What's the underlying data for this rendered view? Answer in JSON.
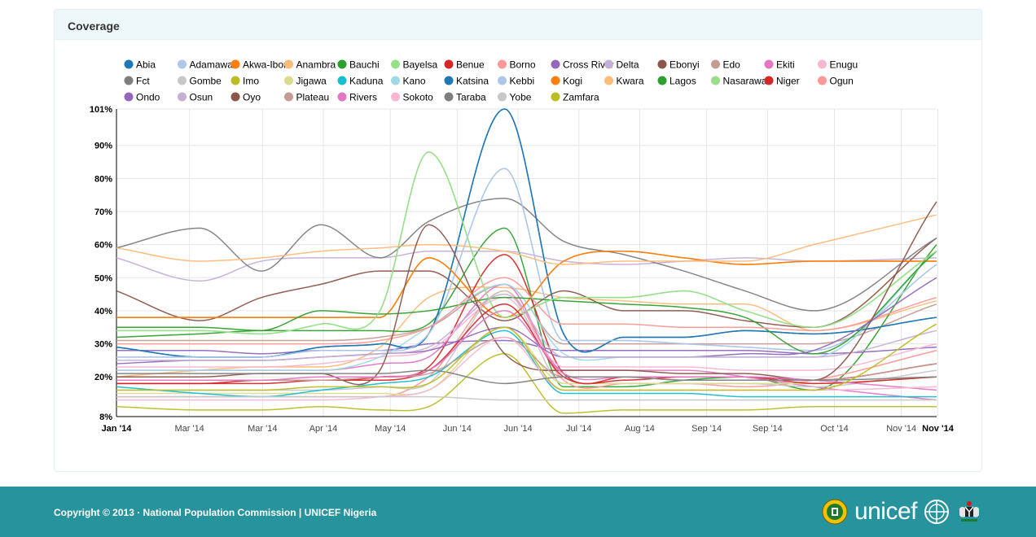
{
  "panel": {
    "title": "Coverage"
  },
  "footer": {
    "copyright": "Copyright © 2013 · National Population Commission | UNICEF Nigeria",
    "logo_text": "unicef"
  },
  "chart_data": {
    "type": "line",
    "title": "",
    "xlabel": "",
    "ylabel": "",
    "curve": "smooth",
    "legend_position": "top",
    "grid": true,
    "ylim": [
      8,
      101
    ],
    "y_ticks": [
      "101%",
      "90%",
      "80%",
      "70%",
      "60%",
      "50%",
      "40%",
      "30%",
      "20%",
      "8%"
    ],
    "y_tick_values": [
      101,
      90,
      80,
      70,
      60,
      50,
      40,
      30,
      20,
      8
    ],
    "x_ticks": [
      "Jan '14",
      "Mar '14",
      "Mar '14",
      "Apr '14",
      "May '14",
      "Jun '14",
      "Jun '14",
      "Jul '14",
      "Aug '14",
      "Sep '14",
      "Sep '14",
      "Oct '14",
      "Nov '14",
      "Nov '14"
    ],
    "x_tick_values": [
      0,
      1.2,
      2.4,
      3.4,
      4.5,
      5.6,
      6.6,
      7.6,
      8.6,
      9.7,
      10.7,
      11.8,
      12.9,
      13.5
    ],
    "x_tick_bold": [
      true,
      false,
      false,
      false,
      false,
      false,
      false,
      false,
      false,
      false,
      false,
      false,
      false,
      true
    ],
    "x": [
      0,
      1.37,
      2.38,
      3.36,
      4.33,
      5.13,
      6.38,
      7.35,
      8.34,
      9.33,
      10.33,
      11.46,
      13.48
    ],
    "series": [
      {
        "name": "Abia",
        "color": "#1f77b4",
        "values": [
          29,
          26,
          26,
          29,
          30,
          33,
          101,
          33,
          32,
          32,
          34,
          33,
          38
        ]
      },
      {
        "name": "Adamawa",
        "color": "#aec7e8",
        "values": [
          26,
          26,
          26,
          28,
          28,
          33,
          83,
          31,
          31,
          30,
          29,
          28,
          54
        ]
      },
      {
        "name": "Akwa-Ibom",
        "color": "#ff7f0e",
        "values": [
          38,
          38,
          38,
          38,
          38,
          56,
          38,
          55,
          58,
          56,
          54,
          55,
          55
        ]
      },
      {
        "name": "Anambra",
        "color": "#ffbb78",
        "values": [
          20,
          22,
          23,
          23,
          29,
          44,
          47,
          44,
          43,
          42,
          42,
          34,
          43
        ]
      },
      {
        "name": "Bauchi",
        "color": "#2ca02c",
        "values": [
          32,
          33,
          34,
          34,
          34,
          36,
          65,
          17,
          17,
          19,
          20,
          16,
          60
        ]
      },
      {
        "name": "Bayelsa",
        "color": "#98df8a",
        "values": [
          34,
          34,
          33,
          36,
          40,
          88,
          38,
          44,
          44,
          46,
          40,
          35,
          58
        ]
      },
      {
        "name": "Benue",
        "color": "#d62728",
        "values": [
          18,
          18,
          19,
          19,
          20,
          23,
          57,
          21,
          20,
          20,
          20,
          19,
          24
        ]
      },
      {
        "name": "Borno",
        "color": "#ff9896",
        "values": [
          14,
          14,
          14,
          14,
          14,
          20,
          46,
          19,
          18,
          18,
          17,
          19,
          28
        ]
      },
      {
        "name": "Cross River",
        "color": "#9467bd",
        "values": [
          28,
          28,
          27,
          28,
          28,
          30,
          31,
          28,
          28,
          28,
          28,
          27,
          29
        ]
      },
      {
        "name": "Delta",
        "color": "#c5b0d5",
        "values": [
          56,
          49,
          55,
          56,
          56,
          58,
          58,
          55,
          54,
          55,
          56,
          55,
          56
        ]
      },
      {
        "name": "Ebonyi",
        "color": "#8c564b",
        "values": [
          46,
          37,
          44,
          48,
          52,
          52,
          37,
          46,
          40,
          40,
          37,
          35,
          62
        ]
      },
      {
        "name": "Edo",
        "color": "#c49c94",
        "values": [
          31,
          31,
          31,
          31,
          32,
          35,
          48,
          30,
          30,
          30,
          30,
          30,
          42
        ]
      },
      {
        "name": "Ekiti",
        "color": "#e377c2",
        "values": [
          22,
          22,
          22,
          22,
          24,
          26,
          48,
          22,
          22,
          22,
          20,
          17,
          13
        ]
      },
      {
        "name": "Enugu",
        "color": "#f7b6d2",
        "values": [
          23,
          23,
          23,
          24,
          26,
          28,
          44,
          23,
          23,
          23,
          22,
          22,
          30
        ]
      },
      {
        "name": "Fct",
        "color": "#7f7f7f",
        "values": [
          59,
          65,
          52,
          66,
          56,
          67,
          74,
          61,
          57,
          52,
          46,
          40,
          62
        ]
      },
      {
        "name": "Gombe",
        "color": "#c7c7c7",
        "values": [
          16,
          16,
          16,
          16,
          17,
          18,
          46,
          18,
          18,
          18,
          18,
          17,
          22
        ]
      },
      {
        "name": "Imo",
        "color": "#bcbd22",
        "values": [
          11,
          10,
          10,
          11,
          10,
          11,
          27,
          9,
          10,
          10,
          10,
          11,
          11
        ]
      },
      {
        "name": "Jigawa",
        "color": "#dbdb8d",
        "values": [
          15,
          15,
          15,
          15,
          15,
          16,
          35,
          18,
          18,
          18,
          18,
          18,
          20
        ]
      },
      {
        "name": "Kaduna",
        "color": "#17becf",
        "values": [
          17,
          15,
          14,
          16,
          18,
          20,
          34,
          15,
          15,
          15,
          14,
          14,
          14
        ]
      },
      {
        "name": "Kano",
        "color": "#9edae5",
        "values": [
          22,
          22,
          22,
          22,
          26,
          35,
          48,
          27,
          26,
          26,
          26,
          26,
          58
        ]
      },
      {
        "name": "Katsina",
        "color": "#1f77b4",
        "values": [
          29,
          26,
          26,
          29,
          30,
          33,
          101,
          33,
          32,
          32,
          34,
          33,
          38
        ]
      },
      {
        "name": "Kebbi",
        "color": "#aec7e8",
        "values": [
          26,
          26,
          26,
          28,
          28,
          33,
          83,
          31,
          31,
          30,
          29,
          28,
          54
        ]
      },
      {
        "name": "Kogi",
        "color": "#ff7f0e",
        "values": [
          38,
          38,
          38,
          38,
          38,
          56,
          38,
          55,
          58,
          56,
          54,
          55,
          55
        ]
      },
      {
        "name": "Kwara",
        "color": "#ffbb78",
        "values": [
          59,
          55,
          56,
          58,
          59,
          60,
          58,
          54,
          55,
          55,
          55,
          60,
          69
        ]
      },
      {
        "name": "Lagos",
        "color": "#2ca02c",
        "values": [
          35,
          35,
          34,
          40,
          39,
          40,
          44,
          43,
          42,
          41,
          38,
          27,
          58
        ]
      },
      {
        "name": "Nasarawa",
        "color": "#98df8a",
        "values": [
          34,
          34,
          33,
          36,
          40,
          88,
          38,
          44,
          44,
          46,
          40,
          35,
          58
        ]
      },
      {
        "name": "Niger",
        "color": "#d62728",
        "values": [
          18,
          18,
          18,
          19,
          19,
          22,
          42,
          20,
          19,
          20,
          20,
          18,
          20
        ]
      },
      {
        "name": "Ogun",
        "color": "#ff9896",
        "values": [
          30,
          30,
          30,
          30,
          31,
          35,
          50,
          36,
          36,
          35,
          35,
          34,
          44
        ]
      },
      {
        "name": "Ondo",
        "color": "#9467bd",
        "values": [
          24,
          25,
          25,
          26,
          27,
          28,
          35,
          26,
          26,
          26,
          27,
          28,
          50
        ]
      },
      {
        "name": "Osun",
        "color": "#c5b0d5",
        "values": [
          25,
          25,
          25,
          26,
          27,
          29,
          45,
          26,
          26,
          26,
          26,
          26,
          34
        ]
      },
      {
        "name": "Oyo",
        "color": "#8c564b",
        "values": [
          20,
          20,
          21,
          21,
          22,
          66,
          27,
          22,
          22,
          21,
          21,
          19,
          73
        ]
      },
      {
        "name": "Plateau",
        "color": "#c49c94",
        "values": [
          19,
          19,
          19,
          19,
          20,
          21,
          32,
          20,
          20,
          19,
          19,
          19,
          24
        ]
      },
      {
        "name": "Rivers",
        "color": "#e377c2",
        "values": [
          19,
          19,
          19,
          20,
          20,
          22,
          40,
          21,
          20,
          20,
          20,
          19,
          16
        ]
      },
      {
        "name": "Sokoto",
        "color": "#f7b6d2",
        "values": [
          13,
          13,
          13,
          13,
          14,
          16,
          32,
          16,
          16,
          16,
          16,
          16,
          17
        ]
      },
      {
        "name": "Taraba",
        "color": "#7f7f7f",
        "values": [
          21,
          21,
          21,
          21,
          21,
          22,
          18,
          20,
          20,
          19,
          19,
          19,
          20
        ]
      },
      {
        "name": "Yobe",
        "color": "#c7c7c7",
        "values": [
          14,
          14,
          14,
          14,
          14,
          14,
          13,
          13,
          13,
          13,
          13,
          13,
          13
        ]
      },
      {
        "name": "Zamfara",
        "color": "#bcbd22",
        "values": [
          16,
          16,
          16,
          17,
          17,
          18,
          35,
          16,
          16,
          16,
          16,
          16,
          36
        ]
      }
    ]
  }
}
